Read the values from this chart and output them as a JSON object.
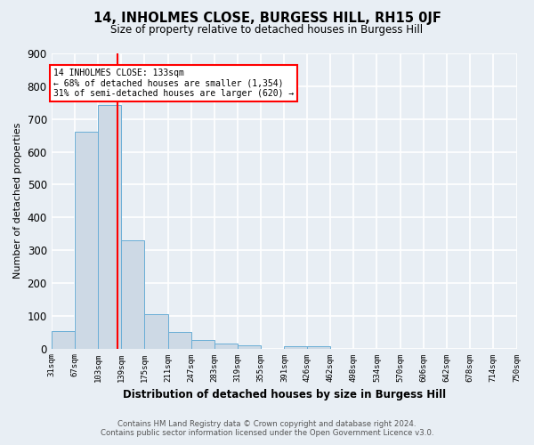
{
  "title": "14, INHOLMES CLOSE, BURGESS HILL, RH15 0JF",
  "subtitle": "Size of property relative to detached houses in Burgess Hill",
  "xlabel": "Distribution of detached houses by size in Burgess Hill",
  "ylabel": "Number of detached properties",
  "footnote1": "Contains HM Land Registry data © Crown copyright and database right 2024.",
  "footnote2": "Contains public sector information licensed under the Open Government Licence v3.0.",
  "bin_edges": [
    31,
    67,
    103,
    139,
    175,
    211,
    247,
    283,
    319,
    355,
    391,
    426,
    462,
    498,
    534,
    570,
    606,
    642,
    678,
    714,
    750
  ],
  "bin_labels": [
    "31sqm",
    "67sqm",
    "103sqm",
    "139sqm",
    "175sqm",
    "211sqm",
    "247sqm",
    "283sqm",
    "319sqm",
    "355sqm",
    "391sqm",
    "426sqm",
    "462sqm",
    "498sqm",
    "534sqm",
    "570sqm",
    "606sqm",
    "642sqm",
    "678sqm",
    "714sqm",
    "750sqm"
  ],
  "counts": [
    52,
    661,
    743,
    330,
    105,
    51,
    27,
    15,
    10,
    0,
    8,
    8,
    0,
    0,
    0,
    0,
    0,
    0,
    0,
    0
  ],
  "bar_color": "#cdd9e5",
  "bar_edge_color": "#6aaed6",
  "vline_x": 133,
  "vline_color": "red",
  "annotation_line1": "14 INHOLMES CLOSE: 133sqm",
  "annotation_line2": "← 68% of detached houses are smaller (1,354)",
  "annotation_line3": "31% of semi-detached houses are larger (620) →",
  "annotation_box_color": "white",
  "annotation_box_edge": "red",
  "ylim": [
    0,
    900
  ],
  "yticks": [
    0,
    100,
    200,
    300,
    400,
    500,
    600,
    700,
    800,
    900
  ],
  "background_color": "#e8eef4",
  "grid_color": "white"
}
